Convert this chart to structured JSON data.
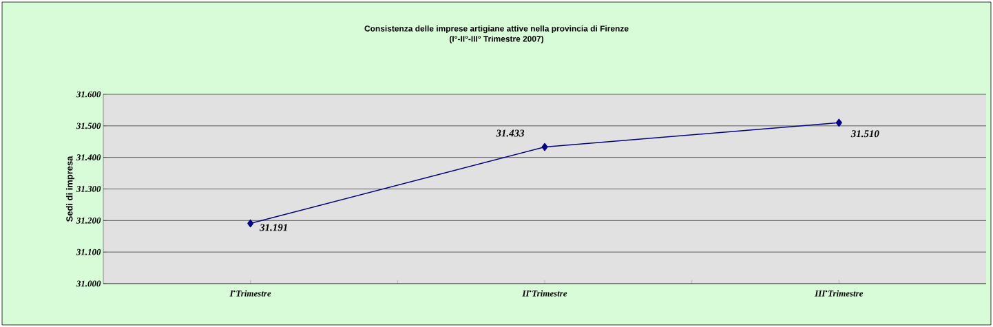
{
  "chart_data": {
    "type": "line",
    "title": "Consistenza delle imprese artigiane attive nella provincia di Firenze\n(I°-II°-III° Trimestre 2007)",
    "ylabel": "Sedi di impresa",
    "categories": [
      "I$^{•}$Trimestre",
      "II$^{•}$Trimestre",
      "III$^{•}$Trimestre"
    ],
    "values": [
      31191,
      31433,
      31510
    ],
    "color": "#000080",
    "marker": "diamond",
    "line_style": "solid",
    "value_labels": [
      "31.191",
      "31.433",
      "31.510"
    ],
    "ylim": [
      31000,
      31600
    ],
    "yticks": [
      {
        "value": 31000,
        "label": "31.000"
      },
      {
        "value": 31100,
        "label": "31.100"
      },
      {
        "value": 31200,
        "label": "31.200"
      },
      {
        "value": 31300,
        "label": "31.300"
      },
      {
        "value": 31400,
        "label": "31.400"
      },
      {
        "value": 31500,
        "label": "31.500"
      },
      {
        "value": 31600,
        "label": "31.600"
      }
    ],
    "grid": "y"
  }
}
